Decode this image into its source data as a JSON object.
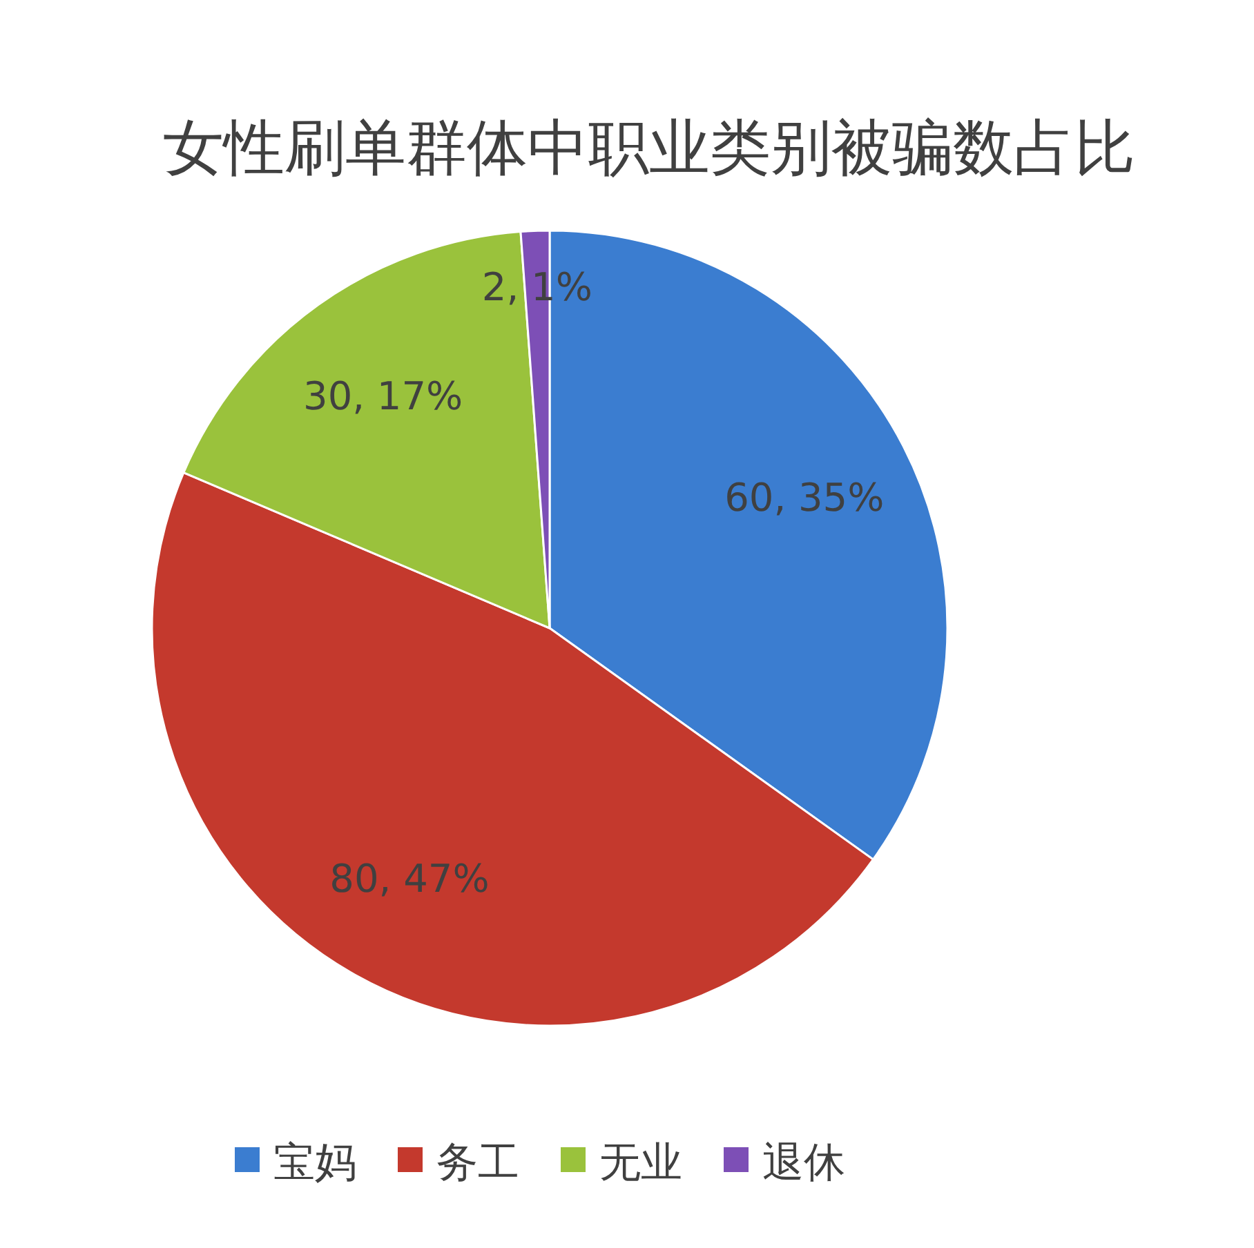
{
  "chart_data": {
    "type": "pie",
    "title": "女性刷单群体中职业类别被骗数占比",
    "categories": [
      "宝妈",
      "务工",
      "无业",
      "退休"
    ],
    "values": [
      60,
      80,
      30,
      2
    ],
    "colors": [
      "#3b7dd0",
      "#c4392d",
      "#9ac23c",
      "#7d4fb6"
    ],
    "value_labels": [
      "60, 35%",
      "80, 47%",
      "30, 17%",
      "2, 1%"
    ],
    "legend": "bottom"
  }
}
